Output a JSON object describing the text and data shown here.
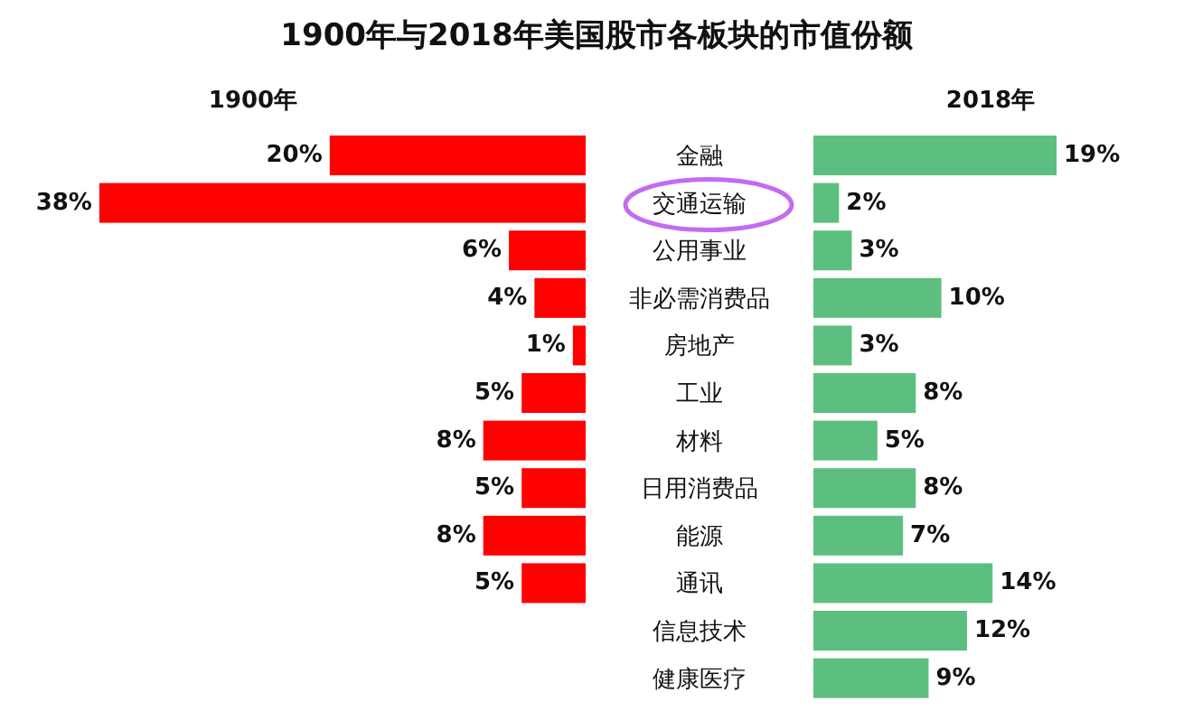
{
  "chart_data": [
    {
      "type": "bar",
      "orientation": "horizontal",
      "title": "1900年与2018年美国股市各板块的市值份额",
      "categories": [
        "金融",
        "交通运输",
        "公用事业",
        "非必需消费品",
        "房地产",
        "工业",
        "材料",
        "日用消费品",
        "能源",
        "通讯",
        "信息技术",
        "健康医疗"
      ],
      "series": [
        {
          "name": "1900年",
          "color": "#ff0000",
          "values": [
            20,
            38,
            6,
            4,
            1,
            5,
            8,
            5,
            8,
            5,
            null,
            null
          ],
          "value_labels": [
            "20%",
            "38%",
            "6%",
            "4%",
            "1%",
            "5%",
            "8%",
            "5%",
            "8%",
            "5%",
            null,
            null
          ]
        }
      ]
    },
    {
      "type": "bar",
      "orientation": "horizontal",
      "categories": [
        null,
        null,
        null,
        null,
        null,
        null,
        null,
        null,
        null,
        null,
        null,
        null
      ],
      "series": [
        {
          "name": "2018年",
          "color": "#5dbf7f",
          "values": [
            19,
            2,
            3,
            10,
            3,
            8,
            5,
            8,
            7,
            14,
            12,
            9
          ],
          "value_labels": [
            "19%",
            "2%",
            "3%",
            "10%",
            "3%",
            "8%",
            "5%",
            "8%",
            "7%",
            "14%",
            "12%",
            "9%"
          ]
        }
      ]
    }
  ]
}
